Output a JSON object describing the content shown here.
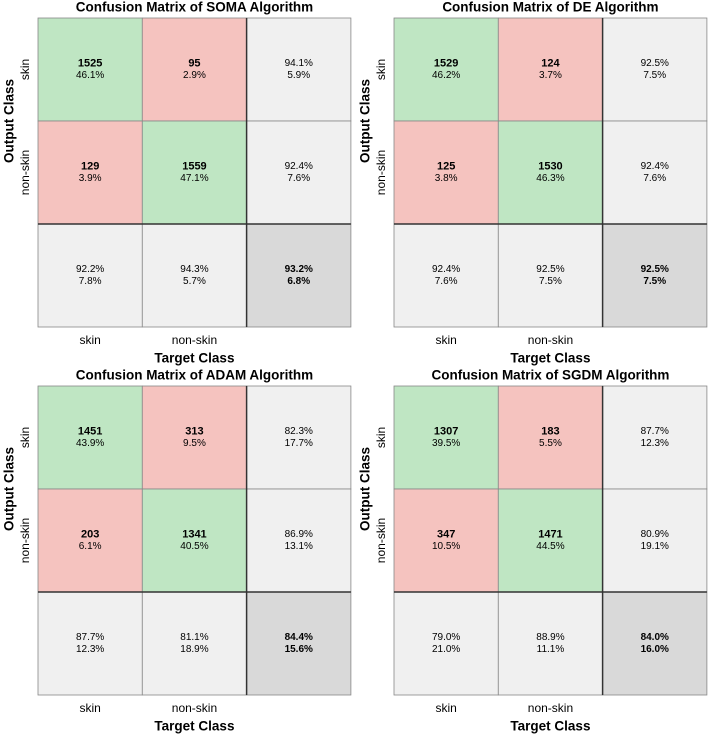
{
  "chart_data": [
    {
      "type": "confusion",
      "title": "Confusion Matrix of SOMA Algorithm",
      "xlabel": "Target Class",
      "ylabel": "Output Class",
      "categories": [
        "skin",
        "non-skin"
      ],
      "counts": [
        [
          1525,
          95
        ],
        [
          129,
          1559
        ]
      ],
      "percents": [
        [
          "46.1%",
          "2.9%"
        ],
        [
          "3.9%",
          "47.1%"
        ]
      ],
      "row_summary": [
        [
          "94.1%",
          "5.9%"
        ],
        [
          "92.4%",
          "7.6%"
        ]
      ],
      "col_summary": [
        [
          "92.2%",
          "7.8%"
        ],
        [
          "94.3%",
          "5.7%"
        ]
      ],
      "overall": [
        "93.2%",
        "6.8%"
      ],
      "colors": {
        "correct": "#bfe6c3",
        "wrong": "#f5c3bf",
        "summary": "#f0f0f0",
        "overall": "#d9d9d9",
        "good_text": "#2aa02a",
        "bad_text": "#e03c31"
      }
    },
    {
      "type": "confusion",
      "title": "Confusion Matrix of DE Algorithm",
      "xlabel": "Target Class",
      "ylabel": "Output Class",
      "categories": [
        "skin",
        "non-skin"
      ],
      "counts": [
        [
          1529,
          124
        ],
        [
          125,
          1530
        ]
      ],
      "percents": [
        [
          "46.2%",
          "3.7%"
        ],
        [
          "3.8%",
          "46.3%"
        ]
      ],
      "row_summary": [
        [
          "92.5%",
          "7.5%"
        ],
        [
          "92.4%",
          "7.6%"
        ]
      ],
      "col_summary": [
        [
          "92.4%",
          "7.6%"
        ],
        [
          "92.5%",
          "7.5%"
        ]
      ],
      "overall": [
        "92.5%",
        "7.5%"
      ],
      "colors": {
        "correct": "#bfe6c3",
        "wrong": "#f5c3bf",
        "summary": "#f0f0f0",
        "overall": "#d9d9d9",
        "good_text": "#2aa02a",
        "bad_text": "#e03c31"
      }
    },
    {
      "type": "confusion",
      "title": "Confusion Matrix of ADAM Algorithm",
      "xlabel": "Target Class",
      "ylabel": "Output Class",
      "categories": [
        "skin",
        "non-skin"
      ],
      "counts": [
        [
          1451,
          313
        ],
        [
          203,
          1341
        ]
      ],
      "percents": [
        [
          "43.9%",
          "9.5%"
        ],
        [
          "6.1%",
          "40.5%"
        ]
      ],
      "row_summary": [
        [
          "82.3%",
          "17.7%"
        ],
        [
          "86.9%",
          "13.1%"
        ]
      ],
      "col_summary": [
        [
          "87.7%",
          "12.3%"
        ],
        [
          "81.1%",
          "18.9%"
        ]
      ],
      "overall": [
        "84.4%",
        "15.6%"
      ],
      "colors": {
        "correct": "#bfe6c3",
        "wrong": "#f5c3bf",
        "summary": "#f0f0f0",
        "overall": "#d9d9d9",
        "good_text": "#2aa02a",
        "bad_text": "#e03c31"
      }
    },
    {
      "type": "confusion",
      "title": "Confusion Matrix of SGDM Algorithm",
      "xlabel": "Target Class",
      "ylabel": "Output Class",
      "categories": [
        "skin",
        "non-skin"
      ],
      "counts": [
        [
          1307,
          183
        ],
        [
          347,
          1471
        ]
      ],
      "percents": [
        [
          "39.5%",
          "5.5%"
        ],
        [
          "10.5%",
          "44.5%"
        ]
      ],
      "row_summary": [
        [
          "87.7%",
          "12.3%"
        ],
        [
          "80.9%",
          "19.1%"
        ]
      ],
      "col_summary": [
        [
          "79.0%",
          "21.0%"
        ],
        [
          "88.9%",
          "11.1%"
        ]
      ],
      "overall": [
        "84.0%",
        "16.0%"
      ],
      "colors": {
        "correct": "#bfe6c3",
        "wrong": "#f5c3bf",
        "summary": "#f0f0f0",
        "overall": "#d9d9d9",
        "good_text": "#2aa02a",
        "bad_text": "#e03c31"
      }
    }
  ]
}
